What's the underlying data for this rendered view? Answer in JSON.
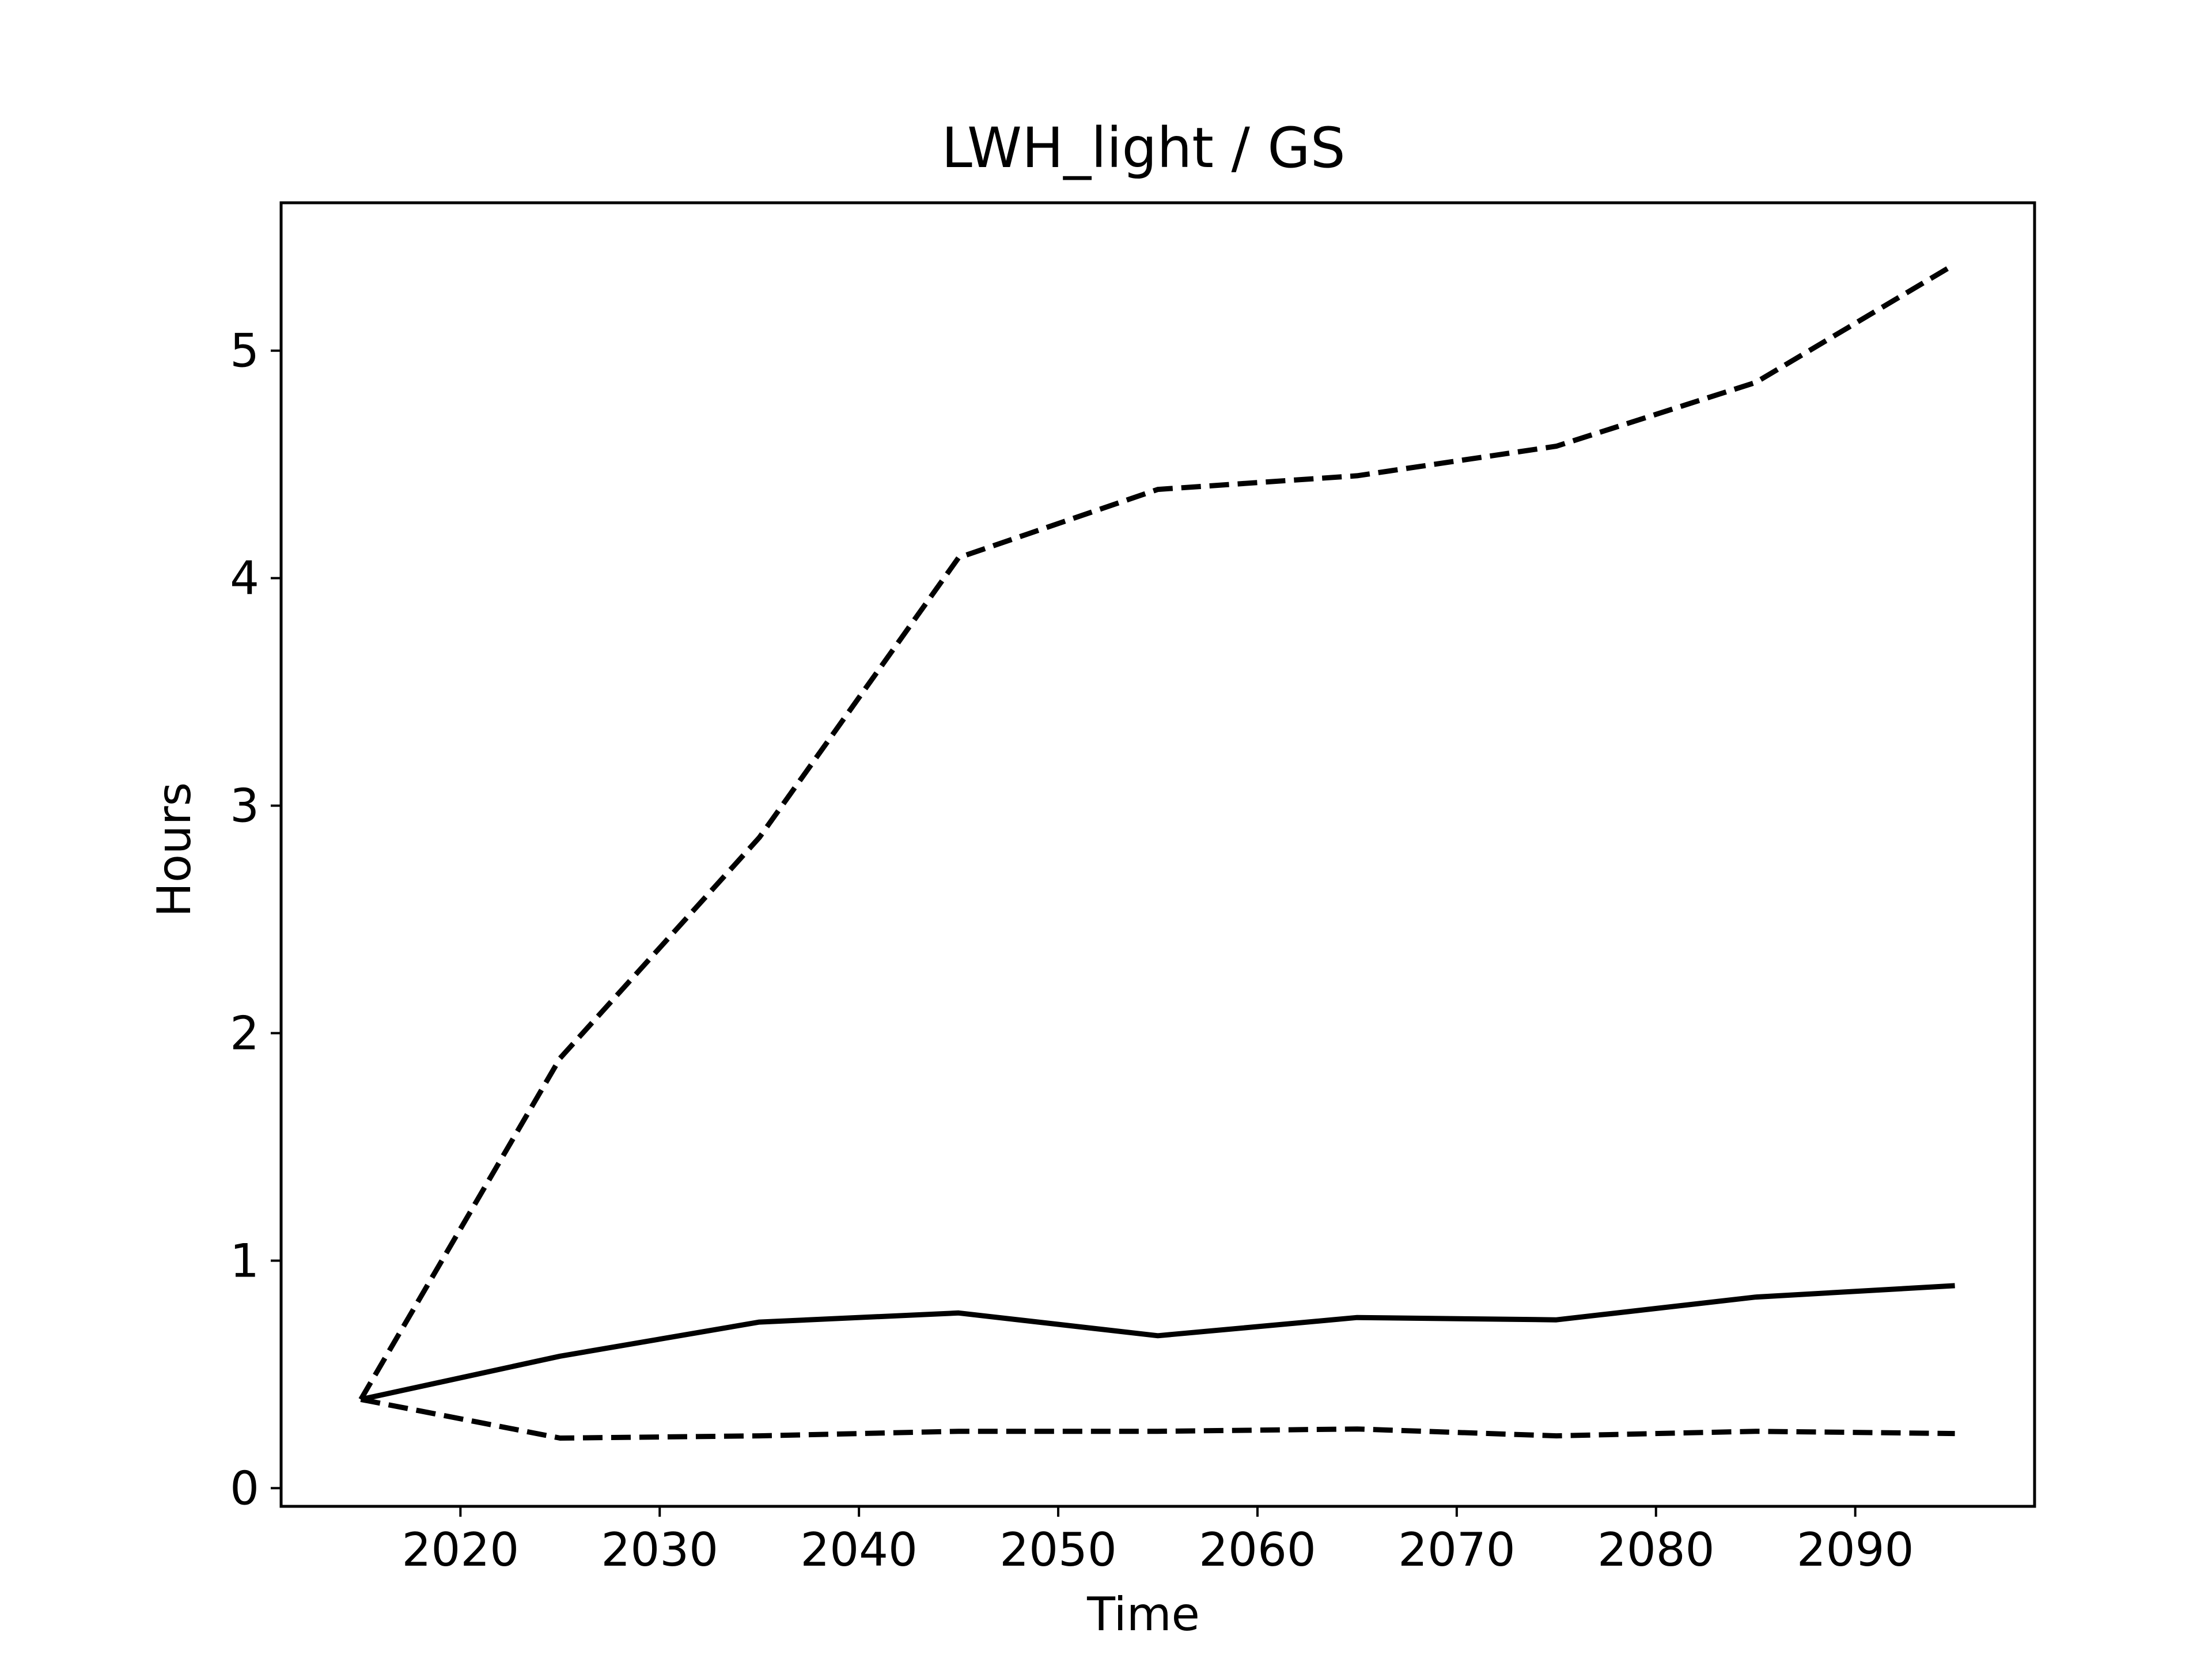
{
  "chart_data": {
    "type": "line",
    "title": "LWH_light / GS",
    "xlabel": "Time",
    "ylabel": "Hours",
    "xlim": [
      2011,
      2099
    ],
    "ylim": [
      -0.08,
      5.65
    ],
    "xticks": [
      2020,
      2030,
      2040,
      2050,
      2060,
      2070,
      2080,
      2090
    ],
    "yticks": [
      0,
      1,
      2,
      3,
      4,
      5
    ],
    "grid": false,
    "line_color": "#000000",
    "x": [
      2015,
      2025,
      2035,
      2045,
      2055,
      2065,
      2075,
      2085,
      2095
    ],
    "series": [
      {
        "style": "solid",
        "values": [
          0.39,
          0.58,
          0.73,
          0.77,
          0.67,
          0.75,
          0.74,
          0.84,
          0.89
        ]
      },
      {
        "style": "dashed",
        "values": [
          0.39,
          1.89,
          2.86,
          4.09,
          4.39,
          4.45,
          4.58,
          4.86,
          5.38
        ]
      },
      {
        "style": "dashed",
        "values": [
          0.39,
          0.22,
          0.23,
          0.25,
          0.25,
          0.26,
          0.23,
          0.25,
          0.24
        ]
      }
    ]
  }
}
